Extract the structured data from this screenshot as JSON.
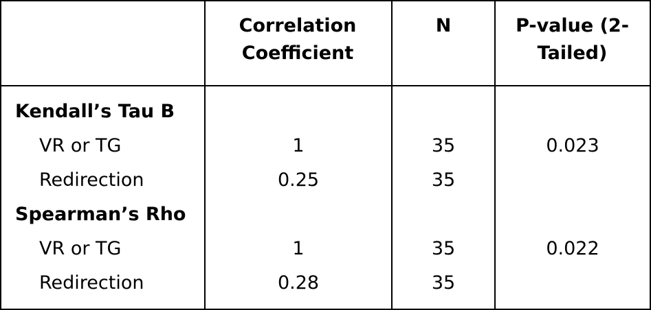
{
  "table": {
    "header": [
      "Correlation Coefficient",
      "N",
      "P-value (2-Tailed)"
    ],
    "sections": [
      {
        "title": "Kendall’s Tau B",
        "rows": [
          {
            "label": "VR or TG",
            "coefficient": 1,
            "n": 35,
            "p_value": 0.023
          },
          {
            "label": "Redirection",
            "coefficient": 0.25,
            "n": 35
          }
        ]
      },
      {
        "title": "Spearman’s Rho",
        "rows": [
          {
            "label": "VR or TG",
            "coefficient": 1,
            "n": 35,
            "p_value": 0.022
          },
          {
            "label": "Redirection",
            "coefficient": 0.28,
            "n": 35
          }
        ]
      }
    ]
  }
}
